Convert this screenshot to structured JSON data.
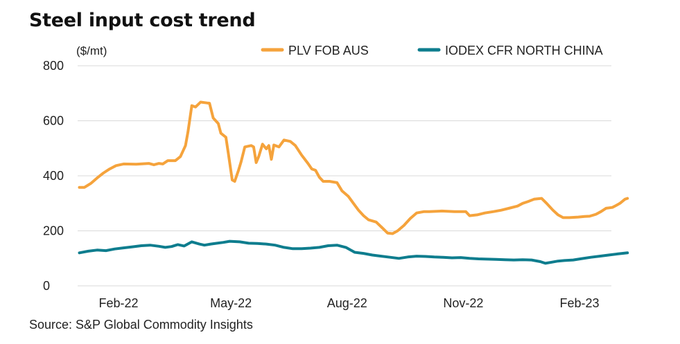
{
  "title": "Steel input cost trend",
  "source": "Source: S&P Global Commodity Insights",
  "chart_data": {
    "type": "line",
    "title": "Steel input cost trend",
    "ylabel": "($/mt)",
    "xlabel": "",
    "ylim": [
      0,
      800
    ],
    "yticks": [
      0,
      200,
      400,
      600,
      800
    ],
    "xlim": [
      "2022-01-01",
      "2023-03-15"
    ],
    "xticks": [
      {
        "date": "2022-02-01",
        "label": "Feb-22"
      },
      {
        "date": "2022-05-01",
        "label": "May-22"
      },
      {
        "date": "2022-08-01",
        "label": "Aug-22"
      },
      {
        "date": "2022-11-01",
        "label": "Nov-22"
      },
      {
        "date": "2023-02-01",
        "label": "Feb-23"
      }
    ],
    "grid": true,
    "legend_position": "top-right",
    "series": [
      {
        "name": "PLV FOB AUS",
        "color": "#F5A33C",
        "points": [
          [
            "2022-01-01",
            358
          ],
          [
            "2022-01-05",
            358
          ],
          [
            "2022-01-10",
            372
          ],
          [
            "2022-01-15",
            392
          ],
          [
            "2022-01-20",
            410
          ],
          [
            "2022-01-25",
            425
          ],
          [
            "2022-01-30",
            437
          ],
          [
            "2022-02-05",
            443
          ],
          [
            "2022-02-15",
            442
          ],
          [
            "2022-02-25",
            445
          ],
          [
            "2022-03-01",
            440
          ],
          [
            "2022-03-05",
            445
          ],
          [
            "2022-03-08",
            443
          ],
          [
            "2022-03-12",
            455
          ],
          [
            "2022-03-18",
            455
          ],
          [
            "2022-03-22",
            470
          ],
          [
            "2022-03-26",
            510
          ],
          [
            "2022-03-28",
            560
          ],
          [
            "2022-03-31",
            655
          ],
          [
            "2022-04-03",
            650
          ],
          [
            "2022-04-07",
            668
          ],
          [
            "2022-04-12",
            665
          ],
          [
            "2022-04-14",
            664
          ],
          [
            "2022-04-17",
            610
          ],
          [
            "2022-04-21",
            590
          ],
          [
            "2022-04-23",
            555
          ],
          [
            "2022-04-27",
            540
          ],
          [
            "2022-04-29",
            480
          ],
          [
            "2022-05-02",
            385
          ],
          [
            "2022-05-04",
            380
          ],
          [
            "2022-05-07",
            420
          ],
          [
            "2022-05-09",
            450
          ],
          [
            "2022-05-12",
            505
          ],
          [
            "2022-05-17",
            510
          ],
          [
            "2022-05-19",
            505
          ],
          [
            "2022-05-21",
            448
          ],
          [
            "2022-05-23",
            470
          ],
          [
            "2022-05-26",
            515
          ],
          [
            "2022-05-29",
            498
          ],
          [
            "2022-05-31",
            510
          ],
          [
            "2022-06-02",
            460
          ],
          [
            "2022-06-04",
            512
          ],
          [
            "2022-06-08",
            505
          ],
          [
            "2022-06-12",
            530
          ],
          [
            "2022-06-17",
            525
          ],
          [
            "2022-06-21",
            510
          ],
          [
            "2022-06-26",
            475
          ],
          [
            "2022-07-01",
            445
          ],
          [
            "2022-07-04",
            425
          ],
          [
            "2022-07-07",
            420
          ],
          [
            "2022-07-10",
            395
          ],
          [
            "2022-07-13",
            380
          ],
          [
            "2022-07-18",
            380
          ],
          [
            "2022-07-24",
            375
          ],
          [
            "2022-07-28",
            345
          ],
          [
            "2022-08-02",
            325
          ],
          [
            "2022-08-06",
            300
          ],
          [
            "2022-08-10",
            275
          ],
          [
            "2022-08-14",
            255
          ],
          [
            "2022-08-18",
            240
          ],
          [
            "2022-08-24",
            232
          ],
          [
            "2022-08-29",
            210
          ],
          [
            "2022-09-02",
            192
          ],
          [
            "2022-09-06",
            190
          ],
          [
            "2022-09-10",
            200
          ],
          [
            "2022-09-15",
            220
          ],
          [
            "2022-09-20",
            245
          ],
          [
            "2022-09-25",
            265
          ],
          [
            "2022-10-01",
            270
          ],
          [
            "2022-10-05",
            270
          ],
          [
            "2022-10-15",
            272
          ],
          [
            "2022-10-25",
            270
          ],
          [
            "2022-11-03",
            270
          ],
          [
            "2022-11-06",
            255
          ],
          [
            "2022-11-12",
            258
          ],
          [
            "2022-11-18",
            265
          ],
          [
            "2022-11-25",
            270
          ],
          [
            "2022-12-01",
            275
          ],
          [
            "2022-12-08",
            283
          ],
          [
            "2022-12-14",
            290
          ],
          [
            "2022-12-18",
            300
          ],
          [
            "2022-12-22",
            306
          ],
          [
            "2022-12-27",
            315
          ],
          [
            "2023-01-02",
            318
          ],
          [
            "2023-01-06",
            300
          ],
          [
            "2023-01-11",
            275
          ],
          [
            "2023-01-15",
            258
          ],
          [
            "2023-01-19",
            248
          ],
          [
            "2023-01-24",
            248
          ],
          [
            "2023-01-31",
            250
          ],
          [
            "2023-02-05",
            252
          ],
          [
            "2023-02-09",
            253
          ],
          [
            "2023-02-14",
            260
          ],
          [
            "2023-02-18",
            270
          ],
          [
            "2023-02-22",
            282
          ],
          [
            "2023-02-27",
            285
          ],
          [
            "2023-03-02",
            292
          ],
          [
            "2023-03-05",
            300
          ],
          [
            "2023-03-09",
            315
          ],
          [
            "2023-03-11",
            318
          ]
        ]
      },
      {
        "name": "IODEX CFR NORTH CHINA",
        "color": "#0E7D8E",
        "points": [
          [
            "2022-01-01",
            120
          ],
          [
            "2022-01-08",
            126
          ],
          [
            "2022-01-15",
            130
          ],
          [
            "2022-01-22",
            128
          ],
          [
            "2022-01-29",
            134
          ],
          [
            "2022-02-05",
            138
          ],
          [
            "2022-02-12",
            142
          ],
          [
            "2022-02-19",
            146
          ],
          [
            "2022-02-26",
            148
          ],
          [
            "2022-03-05",
            144
          ],
          [
            "2022-03-10",
            140
          ],
          [
            "2022-03-15",
            143
          ],
          [
            "2022-03-20",
            150
          ],
          [
            "2022-03-25",
            145
          ],
          [
            "2022-03-31",
            160
          ],
          [
            "2022-04-06",
            152
          ],
          [
            "2022-04-10",
            148
          ],
          [
            "2022-04-15",
            152
          ],
          [
            "2022-04-20",
            155
          ],
          [
            "2022-04-25",
            158
          ],
          [
            "2022-04-30",
            162
          ],
          [
            "2022-05-08",
            160
          ],
          [
            "2022-05-15",
            155
          ],
          [
            "2022-05-22",
            154
          ],
          [
            "2022-05-29",
            152
          ],
          [
            "2022-06-05",
            148
          ],
          [
            "2022-06-12",
            140
          ],
          [
            "2022-06-19",
            135
          ],
          [
            "2022-06-26",
            135
          ],
          [
            "2022-07-03",
            137
          ],
          [
            "2022-07-10",
            140
          ],
          [
            "2022-07-17",
            146
          ],
          [
            "2022-07-24",
            148
          ],
          [
            "2022-07-31",
            140
          ],
          [
            "2022-08-07",
            122
          ],
          [
            "2022-08-14",
            118
          ],
          [
            "2022-08-21",
            112
          ],
          [
            "2022-08-28",
            108
          ],
          [
            "2022-09-04",
            104
          ],
          [
            "2022-09-11",
            100
          ],
          [
            "2022-09-18",
            105
          ],
          [
            "2022-09-25",
            108
          ],
          [
            "2022-10-02",
            107
          ],
          [
            "2022-10-09",
            105
          ],
          [
            "2022-10-16",
            104
          ],
          [
            "2022-10-23",
            102
          ],
          [
            "2022-10-30",
            103
          ],
          [
            "2022-11-06",
            100
          ],
          [
            "2022-11-13",
            98
          ],
          [
            "2022-11-20",
            97
          ],
          [
            "2022-11-27",
            96
          ],
          [
            "2022-12-04",
            95
          ],
          [
            "2022-12-11",
            94
          ],
          [
            "2022-12-18",
            95
          ],
          [
            "2022-12-25",
            94
          ],
          [
            "2023-01-01",
            88
          ],
          [
            "2023-01-05",
            82
          ],
          [
            "2023-01-10",
            86
          ],
          [
            "2023-01-15",
            90
          ],
          [
            "2023-01-20",
            92
          ],
          [
            "2023-01-27",
            94
          ],
          [
            "2023-02-03",
            99
          ],
          [
            "2023-02-10",
            104
          ],
          [
            "2023-02-17",
            108
          ],
          [
            "2023-02-24",
            112
          ],
          [
            "2023-03-03",
            116
          ],
          [
            "2023-03-11",
            120
          ]
        ]
      }
    ]
  }
}
